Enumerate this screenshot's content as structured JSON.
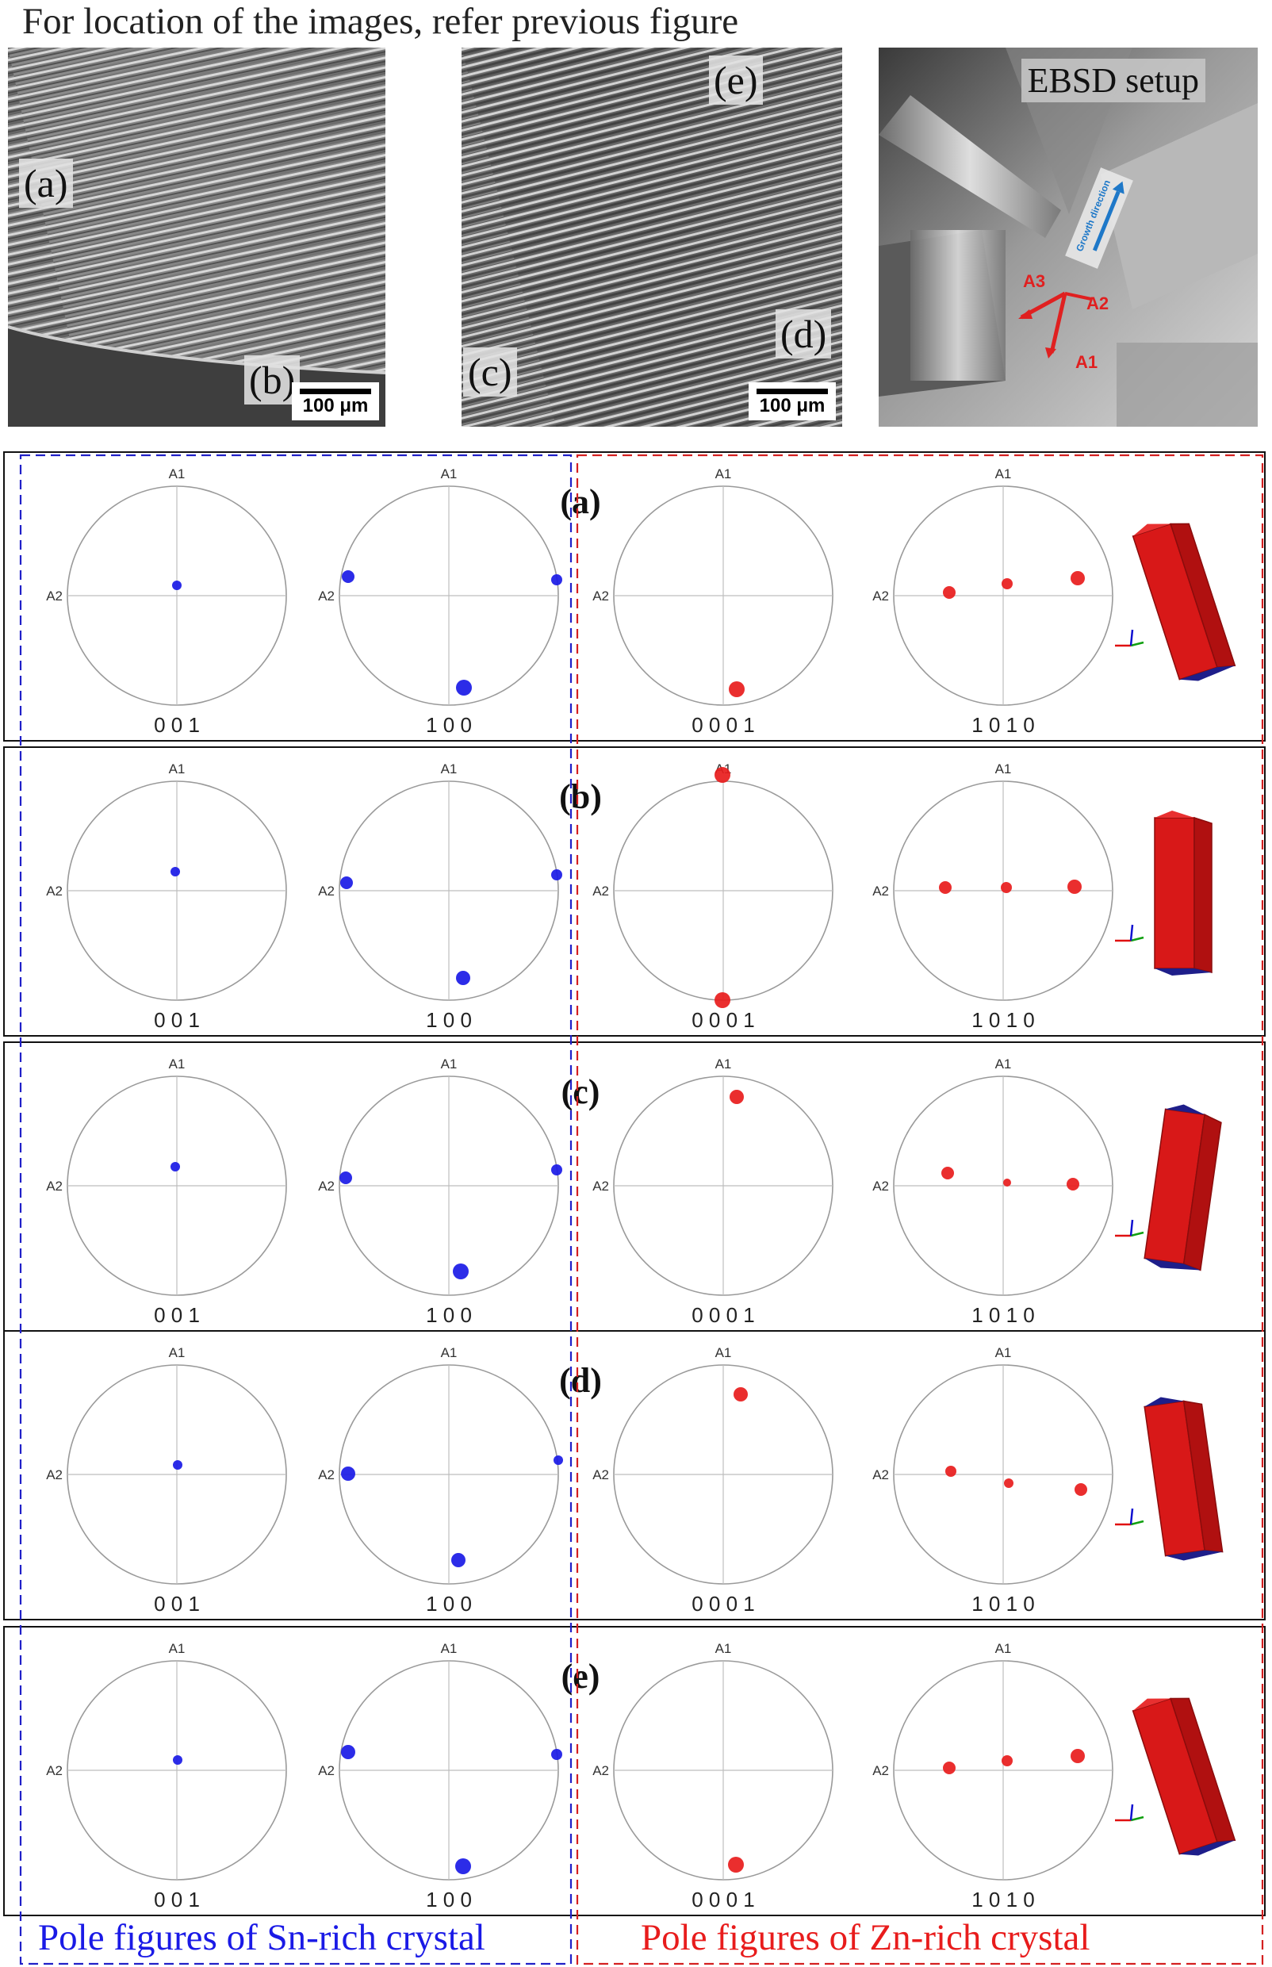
{
  "caption": "For location of the images, refer previous figure",
  "micrographs": {
    "left": {
      "labels": [
        "(a)",
        "(b)"
      ],
      "scale": "100 μm"
    },
    "middle": {
      "labels": [
        "(e)",
        "(c)",
        "(d)"
      ],
      "scale": "100 μm"
    },
    "right": {
      "title": "EBSD setup",
      "axes": [
        "A3",
        "A2",
        "A1"
      ],
      "growth": "Growth direction"
    }
  },
  "pole_figures": {
    "axis_top": "A1",
    "axis_left": "A2",
    "figure_labels": [
      "0 0 1",
      "1 0 0",
      "0 0 0 1",
      "1 0 1 0"
    ],
    "rows": [
      {
        "label": "(a)"
      },
      {
        "label": "(b)"
      },
      {
        "label": "(c)"
      },
      {
        "label": "(d)"
      },
      {
        "label": "(e)"
      }
    ]
  },
  "group_labels": {
    "sn": "Pole figures of Sn-rich crystal",
    "zn": "Pole figures of Zn-rich crystal"
  },
  "colors": {
    "sn": "#1a1ae6",
    "zn": "#e81c1c",
    "sn_dash": "#2020c8",
    "zn_dash": "#d42020"
  }
}
